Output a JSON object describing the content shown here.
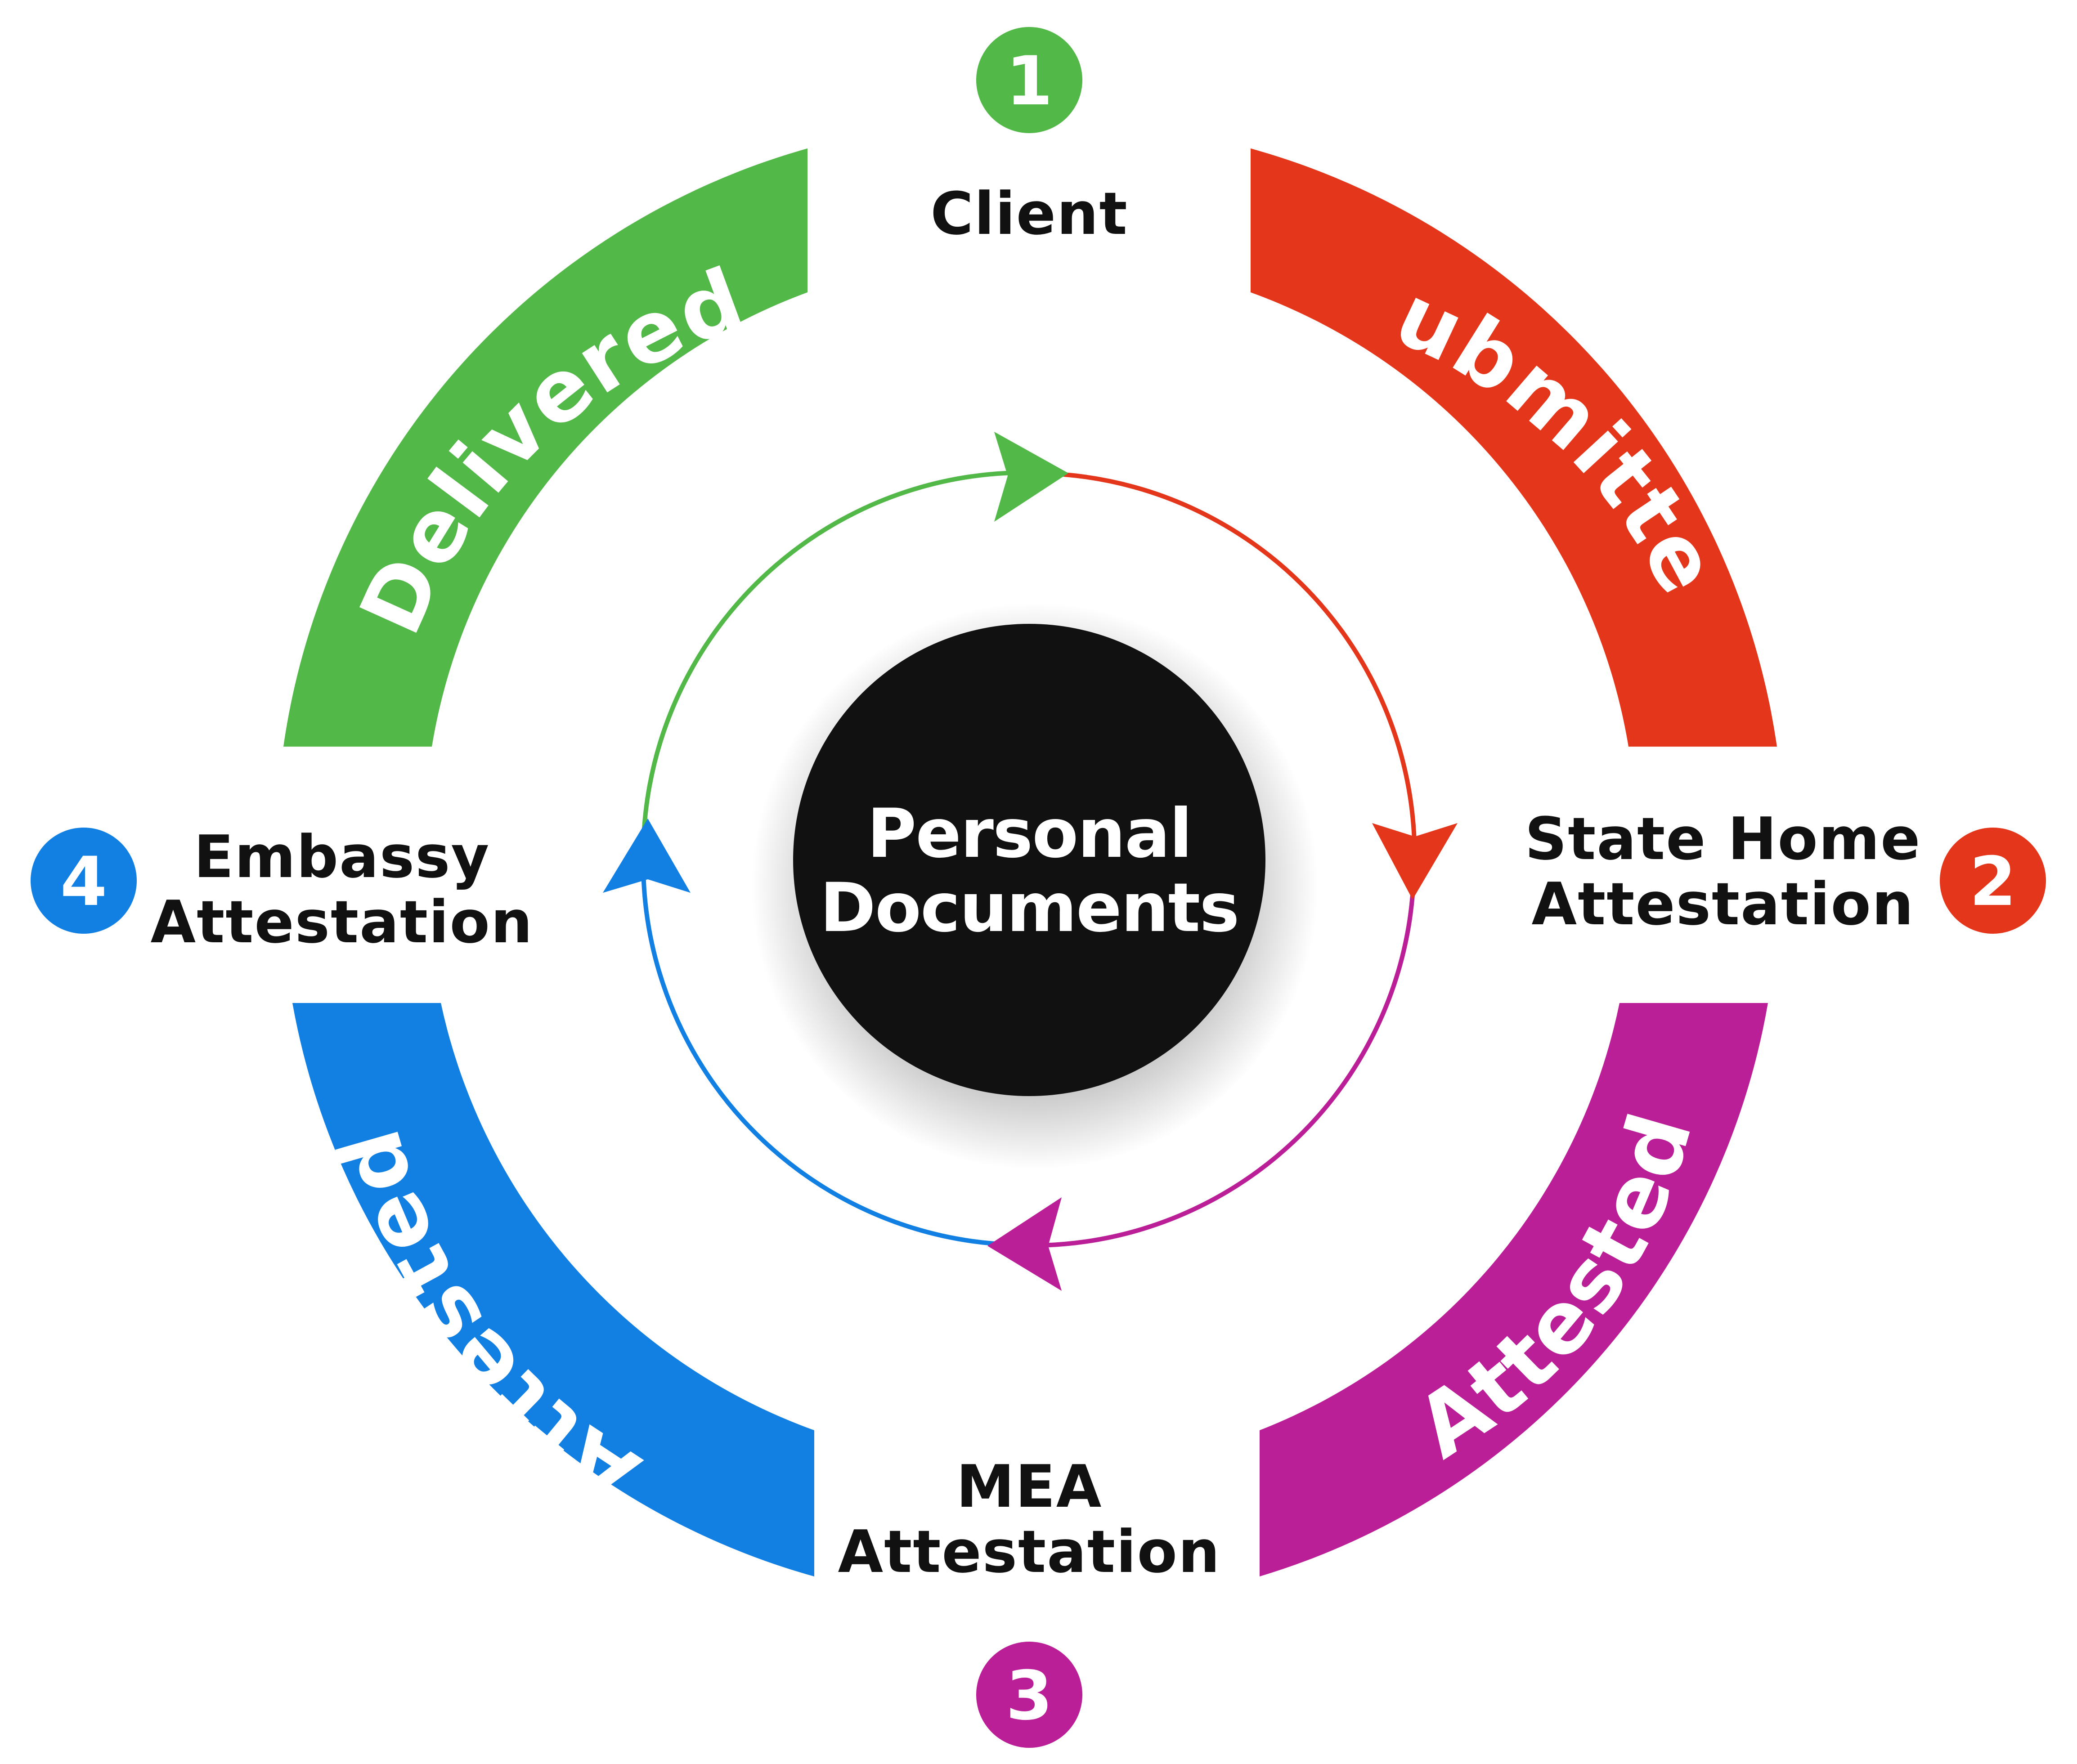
{
  "center": {
    "line1": "Personal",
    "line2": "Documents",
    "color": "#111111"
  },
  "stages": [
    {
      "key": "delivered",
      "arc_label": "Delivered",
      "color": "#52b848"
    },
    {
      "key": "submitted",
      "arc_label": "Submitted",
      "color": "#e4361b"
    },
    {
      "key": "attested_mea",
      "arc_label": "Attested",
      "color": "#bb1f97"
    },
    {
      "key": "attested_embassy",
      "arc_label": "Attested",
      "color": "#1280e3"
    }
  ],
  "steps": [
    {
      "number": "1",
      "line1": "Client",
      "line2": "",
      "color": "#52b848"
    },
    {
      "number": "2",
      "line1": "State Home",
      "line2": "Attestation",
      "color": "#e4361b"
    },
    {
      "number": "3",
      "line1": "MEA",
      "line2": "Attestation",
      "color": "#bb1f97"
    },
    {
      "number": "4",
      "line1": "Embassy",
      "line2": "Attestation",
      "color": "#1280e3"
    }
  ]
}
